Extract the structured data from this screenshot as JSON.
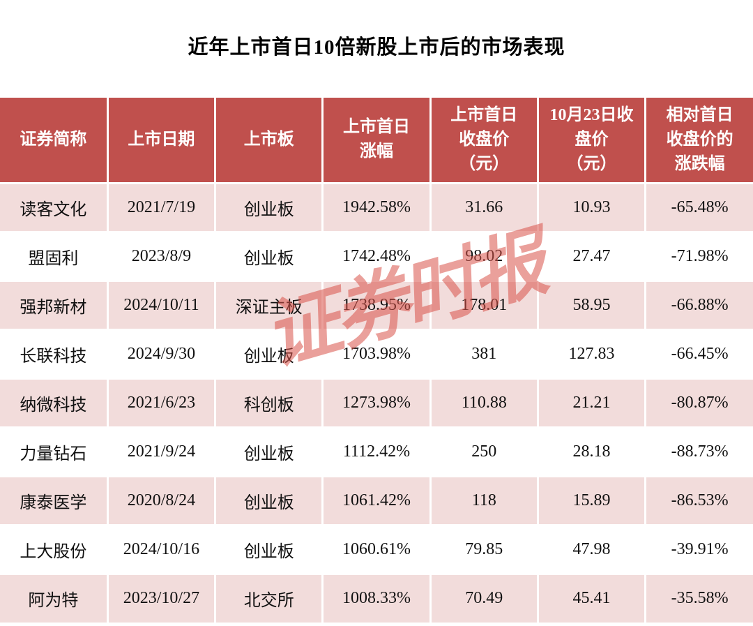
{
  "page_title": "近年上市首日10倍新股上市后的市场表现",
  "watermark_text": "证券时报",
  "colors": {
    "header_bg": "#c0504d",
    "row_alt_bg": "#f2dcdb",
    "row_bg": "#ffffff",
    "header_text": "#ffffff",
    "body_text": "#111111",
    "watermark": "#d9534a"
  },
  "table_headers_display": [
    "证券简称",
    "上市日期",
    "上市板",
    "上市首日\n涨幅",
    "上市首日\n收盘价\n（元）",
    "10月23日收\n盘价\n（元）",
    "相对首日\n收盘价的\n涨跌幅"
  ],
  "chart_data": {
    "type": "table",
    "title": "近年上市首日10倍新股上市后的市场表现",
    "columns": [
      "证券简称",
      "上市日期",
      "上市板",
      "上市首日涨幅",
      "上市首日收盘价（元）",
      "10月23日收盘价（元）",
      "相对首日收盘价的涨跌幅"
    ],
    "rows": [
      [
        "读客文化",
        "2021/7/19",
        "创业板",
        "1942.58%",
        "31.66",
        "10.93",
        "-65.48%"
      ],
      [
        "盟固利",
        "2023/8/9",
        "创业板",
        "1742.48%",
        "98.02",
        "27.47",
        "-71.98%"
      ],
      [
        "强邦新材",
        "2024/10/11",
        "深证主板",
        "1738.95%",
        "178.01",
        "58.95",
        "-66.88%"
      ],
      [
        "长联科技",
        "2024/9/30",
        "创业板",
        "1703.98%",
        "381",
        "127.83",
        "-66.45%"
      ],
      [
        "纳微科技",
        "2021/6/23",
        "科创板",
        "1273.98%",
        "110.88",
        "21.21",
        "-80.87%"
      ],
      [
        "力量钻石",
        "2021/9/24",
        "创业板",
        "1112.42%",
        "250",
        "28.18",
        "-88.73%"
      ],
      [
        "康泰医学",
        "2020/8/24",
        "创业板",
        "1061.42%",
        "118",
        "15.89",
        "-86.53%"
      ],
      [
        "上大股份",
        "2024/10/16",
        "创业板",
        "1060.61%",
        "79.85",
        "47.98",
        "-39.91%"
      ],
      [
        "阿为特",
        "2023/10/27",
        "北交所",
        "1008.33%",
        "70.49",
        "45.41",
        "-35.58%"
      ]
    ]
  }
}
